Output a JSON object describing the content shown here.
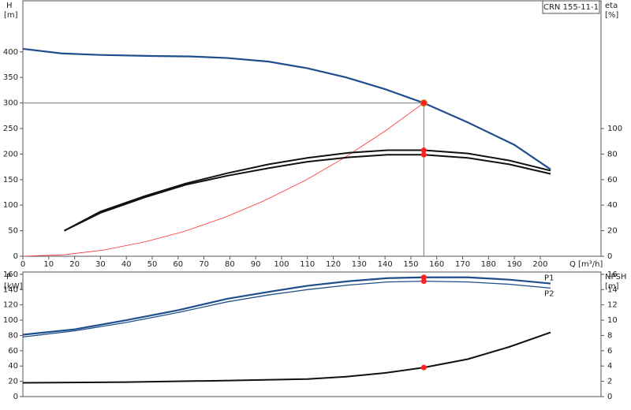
{
  "chart_data": [
    {
      "type": "line",
      "title": "CRN 155-11-1",
      "y_label": "H",
      "y_unit": "[m]",
      "y2_label": "eta",
      "y2_unit": "[%]",
      "x_label": "Q [m³/h]",
      "xlim": [
        0,
        223.5
      ],
      "xticks": [
        0,
        10,
        20,
        30,
        40,
        50,
        60,
        70,
        80,
        90,
        100,
        110,
        120,
        130,
        140,
        150,
        160,
        170,
        180,
        190,
        200
      ],
      "ylim": [
        0,
        500
      ],
      "yticks": [
        0,
        50,
        100,
        150,
        200,
        250,
        300,
        350,
        400
      ],
      "y2lim": [
        0,
        200
      ],
      "y2ticks": [
        0,
        20,
        40,
        60,
        80,
        100
      ],
      "duty_point": {
        "x": 155,
        "y": 300
      },
      "series": [
        {
          "color": "#1f4e8c",
          "width": 2.2,
          "x": [
            0,
            15,
            30,
            50,
            65,
            79,
            95,
            110,
            125,
            140,
            155,
            172,
            190,
            204
          ],
          "values": [
            406,
            397,
            394,
            392,
            391,
            388,
            381,
            368,
            350,
            327,
            300,
            262,
            218,
            170
          ]
        },
        {
          "color": "#ff3030",
          "width": 0.8,
          "x": [
            0,
            16,
            31,
            47,
            62,
            78,
            93,
            109,
            124,
            140,
            155
          ],
          "values": [
            0,
            3,
            12,
            28,
            48,
            76,
            108,
            148,
            192,
            245,
            300
          ]
        },
        {
          "color": "#111111",
          "width": 2,
          "axis": "y2",
          "x": [
            16,
            30,
            47,
            63,
            79,
            95,
            110,
            126,
            141,
            155,
            172,
            188,
            204
          ],
          "values": [
            20,
            35,
            47,
            57,
            65,
            72,
            77,
            81,
            83,
            83,
            80.5,
            75,
            67
          ]
        },
        {
          "color": "#111111",
          "width": 2,
          "axis": "y2",
          "x": [
            16,
            30,
            47,
            63,
            79,
            95,
            110,
            126,
            141,
            155,
            172,
            188,
            204
          ],
          "values": [
            20,
            34,
            46,
            56,
            63,
            69,
            74,
            77.5,
            79.5,
            79.5,
            77,
            72,
            64.5
          ]
        }
      ]
    },
    {
      "type": "line",
      "y_label": "P",
      "y_unit": "[kW]",
      "y2_label": "NPSH",
      "y2_unit": "[m]",
      "xlim": [
        0,
        223.5
      ],
      "ylim": [
        0,
        163
      ],
      "yticks": [
        0,
        20,
        40,
        60,
        80,
        100,
        120,
        140,
        160
      ],
      "y2lim": [
        0,
        16.3
      ],
      "y2ticks": [
        0,
        2,
        4,
        6,
        8,
        10,
        12,
        14,
        16
      ],
      "duty_x": 155,
      "series": [
        {
          "name": "P1",
          "color": "#1f4e8c",
          "width": 2.2,
          "x": [
            0,
            20,
            40,
            60,
            79,
            95,
            110,
            126,
            141,
            155,
            172,
            188,
            204
          ],
          "values": [
            81,
            88,
            100,
            113,
            128,
            137,
            145,
            151,
            155,
            156,
            156,
            153,
            148
          ]
        },
        {
          "name": "P2",
          "color": "#1f4e8c",
          "width": 1.3,
          "x": [
            0,
            20,
            40,
            60,
            79,
            95,
            110,
            126,
            141,
            155,
            172,
            188,
            204
          ],
          "values": [
            78,
            86,
            97,
            110,
            124,
            133,
            140,
            146,
            150,
            151,
            150,
            147,
            142
          ]
        },
        {
          "color": "#111111",
          "width": 2,
          "axis": "y2",
          "x": [
            0,
            40,
            80,
            110,
            125,
            140,
            155,
            172,
            188,
            204
          ],
          "values": [
            1.8,
            1.9,
            2.1,
            2.3,
            2.6,
            3.1,
            3.8,
            4.9,
            6.5,
            8.4
          ]
        }
      ]
    }
  ]
}
